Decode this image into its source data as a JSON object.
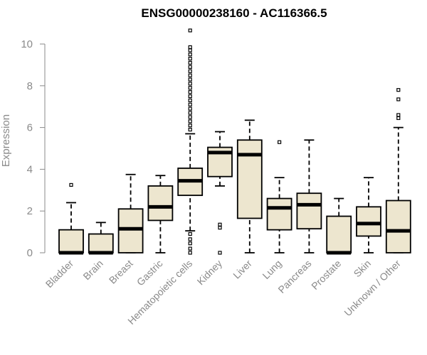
{
  "chart_data": {
    "type": "boxplot",
    "title": "ENSG00000238160 - AC116366.5",
    "ylabel": "Expression",
    "xlabel": "",
    "ylim": [
      0,
      10.5
    ],
    "yticks": [
      0,
      2,
      4,
      6,
      8,
      10
    ],
    "grid": false,
    "box_color": "#ede6cf",
    "categories": [
      "Bladder",
      "Brain",
      "Breast",
      "Gastric",
      "Hematopoietic cells",
      "Kidney",
      "Liver",
      "Lung",
      "Pancreas",
      "Prostate",
      "Skin",
      "Unknown / Other"
    ],
    "boxes": [
      {
        "min": 0,
        "q1": 0,
        "median": 0,
        "q3": 1.1,
        "max": 2.4,
        "outliers": [
          3.25
        ]
      },
      {
        "min": 0,
        "q1": 0,
        "median": 0,
        "q3": 0.9,
        "max": 1.45,
        "outliers": []
      },
      {
        "min": 0,
        "q1": 0,
        "median": 1.15,
        "q3": 2.1,
        "max": 3.75,
        "outliers": []
      },
      {
        "min": 0,
        "q1": 1.55,
        "median": 2.2,
        "q3": 3.2,
        "max": 3.7,
        "outliers": []
      },
      {
        "min": 1.05,
        "q1": 2.75,
        "median": 3.45,
        "q3": 4.05,
        "max": 5.7,
        "outliers": [
          0,
          0.2,
          0.45,
          0.65,
          0.9,
          5.9,
          6.1,
          6.3,
          6.5,
          6.7,
          6.9,
          7.1,
          7.3,
          7.5,
          7.7,
          7.9,
          8.1,
          8.3,
          8.5,
          8.7,
          8.9,
          9.1,
          9.3,
          9.5,
          9.7,
          9.85,
          10.65
        ]
      },
      {
        "min": 3.2,
        "q1": 3.65,
        "median": 4.8,
        "q3": 5.05,
        "max": 5.8,
        "outliers": [
          0,
          1.2,
          1.35
        ]
      },
      {
        "min": 0,
        "q1": 1.65,
        "median": 4.7,
        "q3": 5.4,
        "max": 6.35,
        "outliers": []
      },
      {
        "min": 0,
        "q1": 1.1,
        "median": 2.15,
        "q3": 2.6,
        "max": 3.6,
        "outliers": [
          5.3
        ]
      },
      {
        "min": 0,
        "q1": 1.15,
        "median": 2.3,
        "q3": 2.85,
        "max": 5.4,
        "outliers": []
      },
      {
        "min": 0,
        "q1": 0,
        "median": 0,
        "q3": 1.75,
        "max": 2.6,
        "outliers": []
      },
      {
        "min": 0,
        "q1": 0.8,
        "median": 1.4,
        "q3": 2.2,
        "max": 3.6,
        "outliers": []
      },
      {
        "min": 0,
        "q1": 0,
        "median": 1.05,
        "q3": 2.5,
        "max": 6.0,
        "outliers": [
          6.45,
          6.6,
          7.35,
          7.8
        ]
      }
    ]
  }
}
